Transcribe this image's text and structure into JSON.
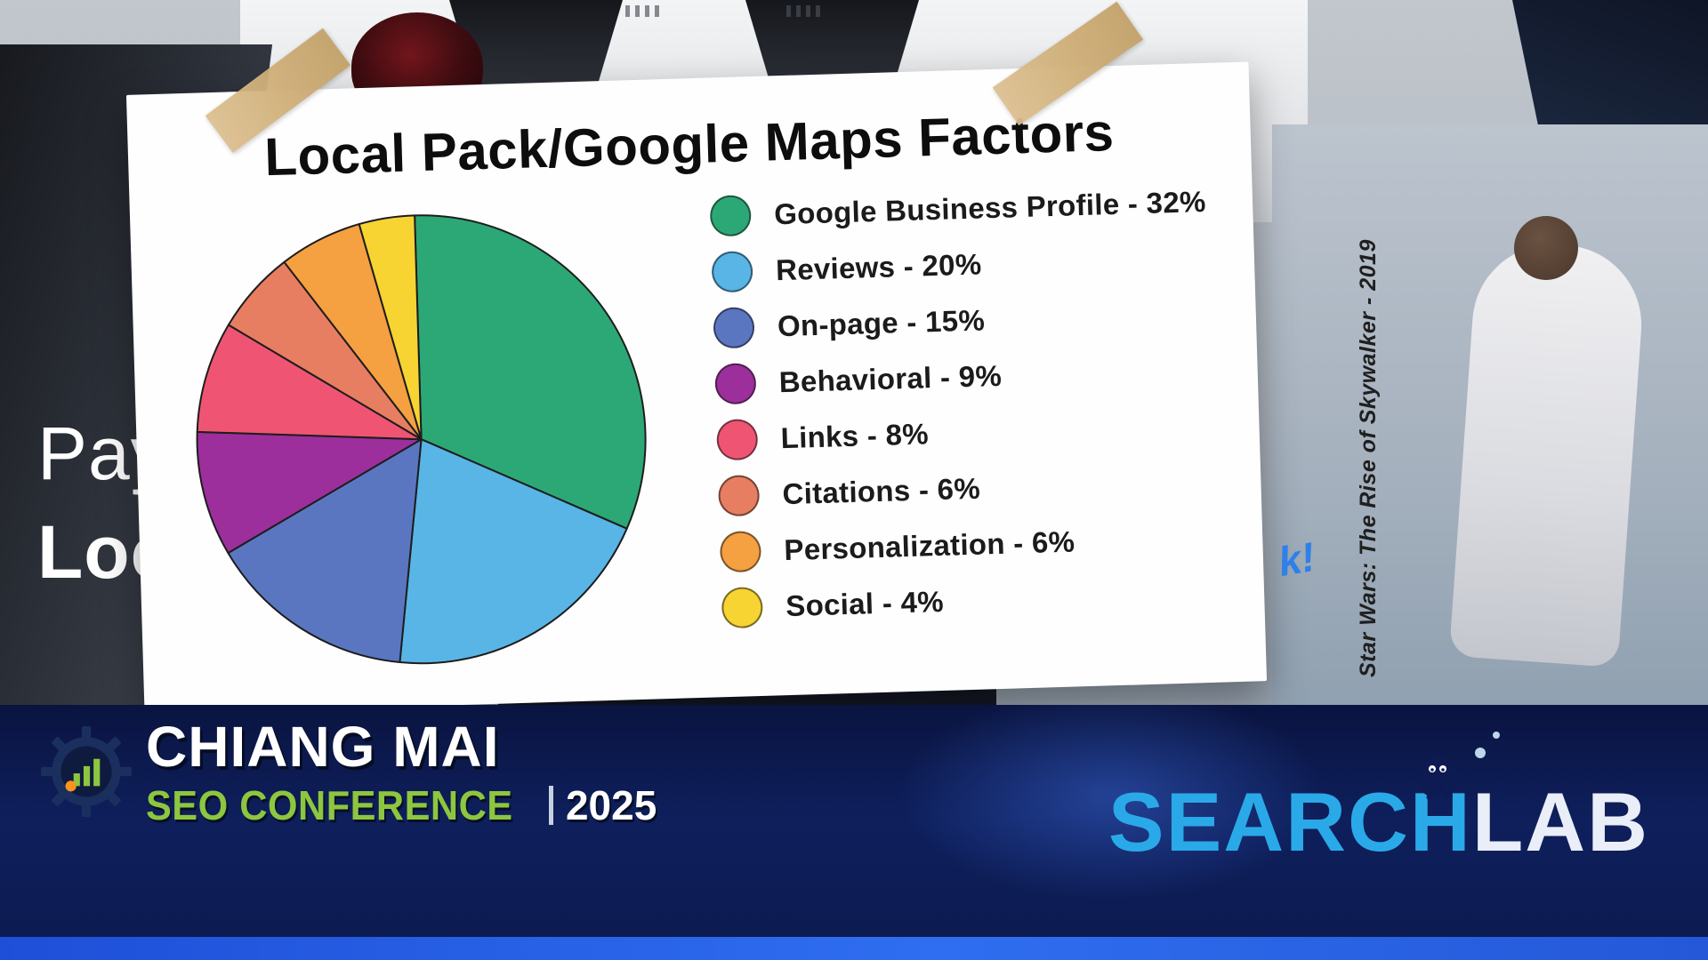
{
  "slide": {
    "title": "Local Pack/Google Maps Factors",
    "caption_line1": "Pay",
    "caption_line2": "Loc",
    "annotation": "k!",
    "photo_credit": "Star Wars: The Rise of Skywalker - 2019"
  },
  "chart_data": {
    "type": "pie",
    "title": "Local Pack/Google Maps Factors",
    "labels": [
      "Google Business Profile",
      "Reviews",
      "On-page",
      "Behavioral",
      "Links",
      "Citations",
      "Personalization",
      "Social"
    ],
    "values": [
      32,
      20,
      15,
      9,
      8,
      6,
      6,
      4
    ],
    "colors": [
      "#2ca876",
      "#58b5e6",
      "#5b76c1",
      "#9c2f9b",
      "#ef5573",
      "#e87e61",
      "#f5a041",
      "#f8d433"
    ],
    "start_angle_deg": 0,
    "direction": "clockwise",
    "legend_position": "right",
    "label_format": "{label} - {value}%"
  },
  "footer": {
    "conference_line1": "CHIANG MAI",
    "conference_line2": "SEO CONFERENCE",
    "year": "2025",
    "brand_part1": "SEARCH",
    "brand_part2": "LAB"
  }
}
